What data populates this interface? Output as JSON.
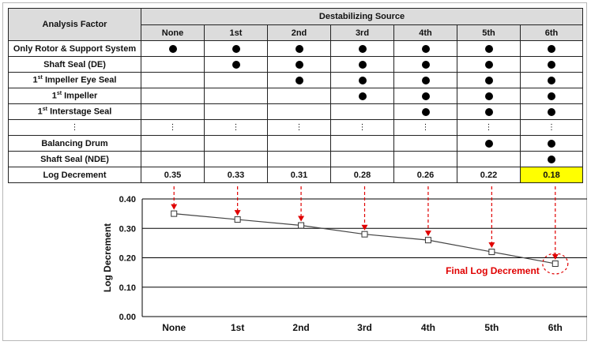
{
  "table": {
    "header_factor": "Analysis Factor",
    "header_source": "Destabilizing Source",
    "columns": [
      "None",
      "1st",
      "2nd",
      "3rd",
      "4th",
      "5th",
      "6th"
    ],
    "rows": [
      {
        "factor": "Only Rotor & Support System",
        "marks": [
          true,
          true,
          true,
          true,
          true,
          true,
          true
        ]
      },
      {
        "factor": "Shaft Seal (DE)",
        "marks": [
          false,
          true,
          true,
          true,
          true,
          true,
          true
        ]
      },
      {
        "factor": "1st Impeller Eye Seal",
        "factor_sup": "st",
        "factor_base": "1",
        "factor_rest": " Impeller Eye Seal",
        "marks": [
          false,
          false,
          true,
          true,
          true,
          true,
          true
        ]
      },
      {
        "factor": "1st Impeller",
        "factor_sup": "st",
        "factor_base": "1",
        "factor_rest": " Impeller",
        "marks": [
          false,
          false,
          false,
          true,
          true,
          true,
          true
        ]
      },
      {
        "factor": "1st Interstage Seal",
        "factor_sup": "st",
        "factor_base": "1",
        "factor_rest": " Interstage Seal",
        "marks": [
          false,
          false,
          false,
          false,
          true,
          true,
          true
        ]
      },
      {
        "factor": "⋮",
        "ellipsis": true
      },
      {
        "factor": "Balancing Drum",
        "marks": [
          false,
          false,
          false,
          false,
          false,
          true,
          true
        ]
      },
      {
        "factor": "Shaft Seal (NDE)",
        "marks": [
          false,
          false,
          false,
          false,
          false,
          false,
          true
        ]
      }
    ],
    "log_decrement_label": "Log Decrement",
    "log_decrement_values": [
      "0.35",
      "0.33",
      "0.31",
      "0.28",
      "0.26",
      "0.22",
      "0.18"
    ],
    "highlight_color": "#ffff00"
  },
  "chart_data": {
    "type": "line",
    "categories": [
      "None",
      "1st",
      "2nd",
      "3rd",
      "4th",
      "5th",
      "6th"
    ],
    "series": [
      {
        "values": [
          0.35,
          0.33,
          0.31,
          0.28,
          0.26,
          0.22,
          0.18
        ]
      }
    ],
    "ylabel": "Log Decrement",
    "xlabel": "",
    "ylim": [
      0.0,
      0.4
    ],
    "yticks": [
      "0.00",
      "0.10",
      "0.20",
      "0.30",
      "0.40"
    ],
    "grid": true,
    "marker": "open-square",
    "arrow_color": "#e00000",
    "annotation": "Final Log Decrement"
  }
}
